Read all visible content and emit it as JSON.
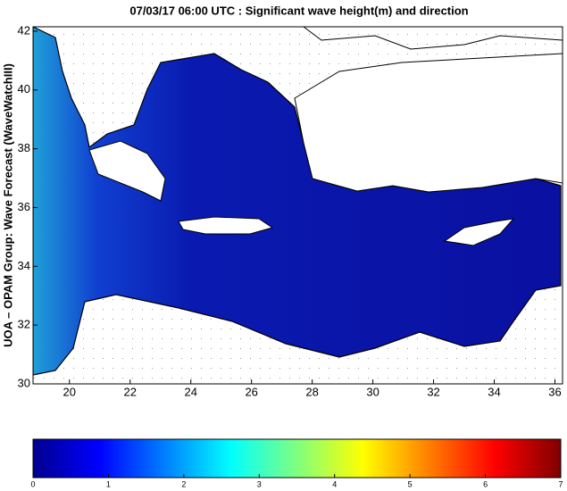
{
  "chart_data": {
    "type": "map",
    "title": "07/03/17 06:00 UTC : Significant wave height(m) and direction",
    "y_label": "UOA – OPAM Group: Wave Forecast (WaveWatchIII)",
    "xlim": [
      18.8,
      36.25
    ],
    "xticks": [
      20,
      22,
      24,
      26,
      28,
      30,
      32,
      34,
      36
    ],
    "ylim": [
      30,
      42.15
    ],
    "yticks": [
      30,
      32,
      34,
      36,
      38,
      40,
      42
    ],
    "colorbar": {
      "lim": [
        0,
        7
      ],
      "ticks": [
        0,
        1,
        2,
        3,
        4,
        5,
        6,
        7
      ]
    }
  }
}
